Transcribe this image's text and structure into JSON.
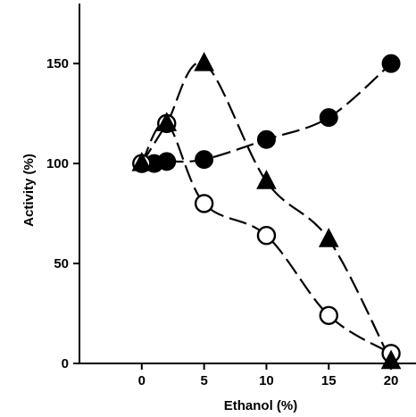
{
  "chart_data": {
    "type": "line",
    "title": "",
    "xlabel": "Ethanol (%)",
    "ylabel": "Activity (%)",
    "xlim": [
      -5,
      22
    ],
    "ylim": [
      0,
      180
    ],
    "xticks": [
      0,
      5,
      10,
      15,
      20
    ],
    "yticks": [
      0,
      50,
      100,
      150
    ],
    "grid": false,
    "legend": "none",
    "series": [
      {
        "marker": "filled-circle",
        "color": "#000000",
        "x": [
          0,
          1,
          2,
          5,
          10,
          15,
          20
        ],
        "y": [
          100,
          100,
          101,
          102,
          112,
          123,
          150
        ]
      },
      {
        "marker": "open-circle",
        "color": "#000000",
        "x": [
          0,
          2,
          5,
          10,
          15,
          20
        ],
        "y": [
          100,
          120,
          80,
          64,
          24,
          5
        ]
      },
      {
        "marker": "filled-triangle",
        "color": "#000000",
        "x": [
          0,
          2,
          5,
          10,
          15,
          20
        ],
        "y": [
          100,
          120,
          150,
          91,
          62,
          1
        ]
      }
    ]
  }
}
